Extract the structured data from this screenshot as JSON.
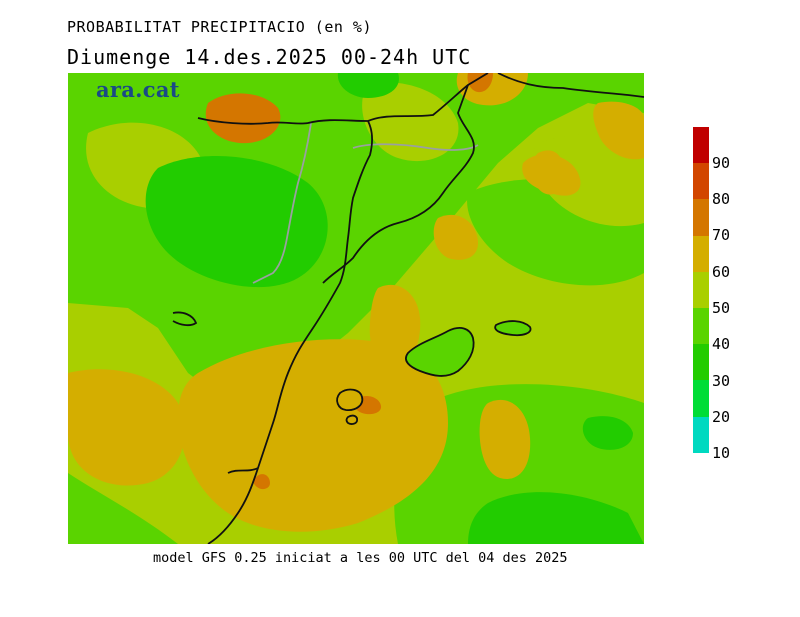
{
  "title": {
    "line1": "PROBABILITAT PRECIPITACIO (en %)",
    "line2": "Diumenge  14.des.2025 00-24h UTC"
  },
  "logo": {
    "text": "ara.cat"
  },
  "footer": "model GFS 0.25 iniciat a les 00 UTC del 04 des 2025",
  "colorbar": {
    "labels": [
      "90",
      "80",
      "70",
      "60",
      "50",
      "40",
      "30",
      "20",
      "10"
    ],
    "colors": [
      "#c00000",
      "#d24600",
      "#d47600",
      "#d4ae00",
      "#a9cf00",
      "#5ad400",
      "#22cc00",
      "#00dd36",
      "#00d9c0"
    ]
  },
  "map": {
    "field_colors": {
      "p30": "#22cc00",
      "p40": "#5ad400",
      "p50": "#a9cf00",
      "p60": "#d4ae00",
      "p70": "#d47600"
    },
    "coastline_color": "#111111",
    "region_border_color": "#9aa0a0"
  }
}
